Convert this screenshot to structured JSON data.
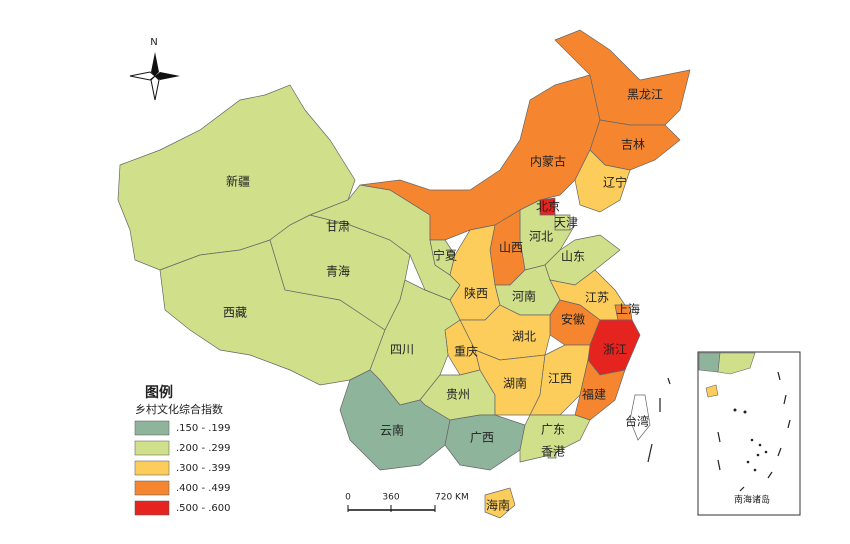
{
  "map": {
    "north": "N",
    "legend": {
      "title": "图例",
      "subtitle": "乡村文化综合指数",
      "items": [
        {
          "label": ".150 - .199",
          "color": "#8fb49c"
        },
        {
          "label": ".200 - .299",
          "color": "#cfdf8a"
        },
        {
          "label": ".300 - .399",
          "color": "#fccd5a"
        },
        {
          "label": ".400 - .499",
          "color": "#f5862f"
        },
        {
          "label": ".500 - .600",
          "color": "#e5231f"
        }
      ]
    },
    "scale_bar": {
      "labels": [
        "0",
        "360",
        "720 KM"
      ]
    },
    "inset_label": "南海诸岛",
    "regions": [
      {
        "name": "新疆",
        "color": "#cfdf8a"
      },
      {
        "name": "西藏",
        "color": "#cfdf8a"
      },
      {
        "name": "青海",
        "color": "#cfdf8a"
      },
      {
        "name": "甘肃",
        "color": "#cfdf8a"
      },
      {
        "name": "内蒙古",
        "color": "#f5862f"
      },
      {
        "name": "黑龙江",
        "color": "#f5862f"
      },
      {
        "name": "吉林",
        "color": "#f5862f"
      },
      {
        "name": "辽宁",
        "color": "#fccd5a"
      },
      {
        "name": "北京",
        "color": "#e5231f"
      },
      {
        "name": "天津",
        "color": "#cfdf8a"
      },
      {
        "name": "河北",
        "color": "#cfdf8a"
      },
      {
        "name": "山西",
        "color": "#f5862f"
      },
      {
        "name": "宁夏",
        "color": "#cfdf8a"
      },
      {
        "name": "陕西",
        "color": "#fccd5a"
      },
      {
        "name": "山东",
        "color": "#cfdf8a"
      },
      {
        "name": "河南",
        "color": "#cfdf8a"
      },
      {
        "name": "江苏",
        "color": "#fccd5a"
      },
      {
        "name": "上海",
        "color": "#f5862f"
      },
      {
        "name": "安徽",
        "color": "#f5862f"
      },
      {
        "name": "浙江",
        "color": "#e5231f"
      },
      {
        "name": "湖北",
        "color": "#fccd5a"
      },
      {
        "name": "重庆",
        "color": "#fccd5a"
      },
      {
        "name": "四川",
        "color": "#cfdf8a"
      },
      {
        "name": "贵州",
        "color": "#cfdf8a"
      },
      {
        "name": "湖南",
        "color": "#fccd5a"
      },
      {
        "name": "江西",
        "color": "#fccd5a"
      },
      {
        "name": "福建",
        "color": "#f5862f"
      },
      {
        "name": "云南",
        "color": "#8fb49c"
      },
      {
        "name": "广西",
        "color": "#8fb49c"
      },
      {
        "name": "广东",
        "color": "#cfdf8a"
      },
      {
        "name": "香港",
        "color": "#cfdf8a"
      },
      {
        "name": "海南",
        "color": "#fccd5a"
      },
      {
        "name": "台湾",
        "color": "#ffffff"
      }
    ]
  }
}
